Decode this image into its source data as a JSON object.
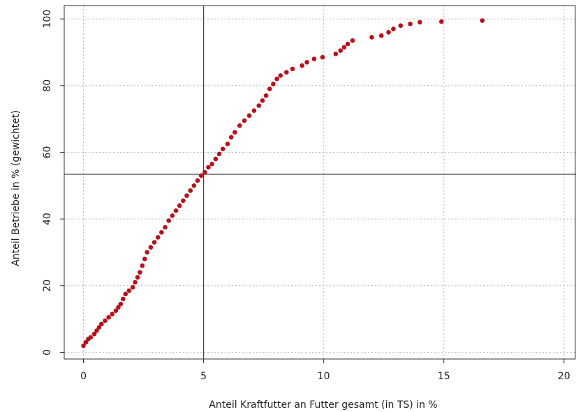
{
  "chart_data": {
    "type": "scatter",
    "xlabel": "Anteil Kraftfutter an Futter gesamt (in TS) in %",
    "ylabel": "Anteil Betriebe in % (gewichtet)",
    "xlim": [
      -0.8,
      20.5
    ],
    "ylim": [
      -2,
      104
    ],
    "x_ticks": [
      0,
      5,
      10,
      15,
      20
    ],
    "y_ticks": [
      0,
      20,
      40,
      60,
      80,
      100
    ],
    "x_tick_labels": [
      "0",
      "5",
      "10",
      "15",
      "20"
    ],
    "y_tick_labels": [
      "0",
      "20",
      "40",
      "60",
      "80",
      "100"
    ],
    "grid": true,
    "grid_style": "dotted",
    "reference_lines": {
      "vertical_x": 5.0,
      "horizontal_y": 53.4
    },
    "point_color": "#b5121b",
    "series": [
      {
        "points": [
          [
            0.0,
            2.0
          ],
          [
            0.1,
            3.0
          ],
          [
            0.2,
            4.0
          ],
          [
            0.3,
            4.5
          ],
          [
            0.45,
            5.5
          ],
          [
            0.55,
            6.5
          ],
          [
            0.65,
            7.5
          ],
          [
            0.75,
            8.5
          ],
          [
            0.9,
            9.5
          ],
          [
            1.05,
            10.5
          ],
          [
            1.2,
            11.5
          ],
          [
            1.35,
            12.5
          ],
          [
            1.45,
            13.5
          ],
          [
            1.55,
            14.5
          ],
          [
            1.65,
            16.0
          ],
          [
            1.75,
            17.5
          ],
          [
            1.9,
            18.5
          ],
          [
            2.05,
            19.5
          ],
          [
            2.15,
            21.0
          ],
          [
            2.25,
            22.5
          ],
          [
            2.35,
            24.0
          ],
          [
            2.45,
            26.0
          ],
          [
            2.55,
            28.0
          ],
          [
            2.65,
            30.0
          ],
          [
            2.8,
            31.5
          ],
          [
            2.95,
            33.0
          ],
          [
            3.1,
            34.5
          ],
          [
            3.25,
            36.0
          ],
          [
            3.4,
            37.5
          ],
          [
            3.55,
            39.5
          ],
          [
            3.7,
            41.0
          ],
          [
            3.85,
            42.5
          ],
          [
            4.0,
            44.0
          ],
          [
            4.15,
            45.5
          ],
          [
            4.3,
            47.0
          ],
          [
            4.45,
            48.5
          ],
          [
            4.6,
            50.0
          ],
          [
            4.75,
            51.5
          ],
          [
            4.9,
            53.0
          ],
          [
            5.05,
            54.0
          ],
          [
            5.2,
            55.5
          ],
          [
            5.35,
            56.5
          ],
          [
            5.5,
            58.0
          ],
          [
            5.65,
            59.5
          ],
          [
            5.8,
            61.0
          ],
          [
            6.0,
            62.5
          ],
          [
            6.15,
            64.5
          ],
          [
            6.3,
            66.0
          ],
          [
            6.5,
            68.0
          ],
          [
            6.7,
            69.5
          ],
          [
            6.9,
            71.0
          ],
          [
            7.1,
            72.5
          ],
          [
            7.3,
            74.0
          ],
          [
            7.45,
            75.5
          ],
          [
            7.6,
            77.0
          ],
          [
            7.75,
            79.0
          ],
          [
            7.9,
            80.5
          ],
          [
            8.05,
            82.0
          ],
          [
            8.2,
            83.0
          ],
          [
            8.45,
            84.0
          ],
          [
            8.7,
            85.0
          ],
          [
            9.1,
            86.0
          ],
          [
            9.3,
            87.0
          ],
          [
            9.6,
            88.0
          ],
          [
            9.95,
            88.5
          ],
          [
            10.5,
            89.5
          ],
          [
            10.7,
            90.5
          ],
          [
            10.85,
            91.5
          ],
          [
            11.0,
            92.5
          ],
          [
            11.2,
            93.5
          ],
          [
            12.0,
            94.5
          ],
          [
            12.4,
            95.0
          ],
          [
            12.7,
            96.0
          ],
          [
            12.9,
            97.0
          ],
          [
            13.2,
            98.0
          ],
          [
            13.6,
            98.5
          ],
          [
            14.0,
            99.0
          ],
          [
            14.9,
            99.2
          ],
          [
            16.6,
            99.5
          ]
        ]
      }
    ]
  }
}
